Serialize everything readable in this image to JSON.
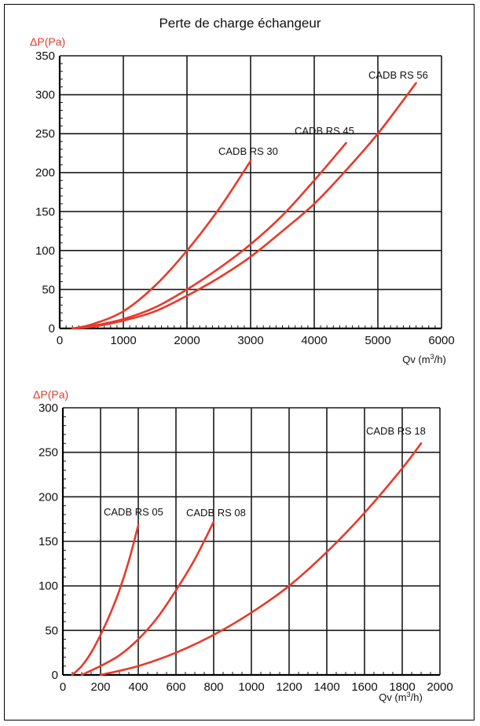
{
  "page_title": "Perte de charge échangeur",
  "colors": {
    "curve": "#e8392b",
    "ylabel": "#e23a2e",
    "grid": "#1a1a1a"
  },
  "chart_data": [
    {
      "type": "line",
      "ylabel": "ΔP(Pa)",
      "xlabel_prefix": "Qv (m",
      "xlabel_sup": "3",
      "xlabel_suffix": "/h)",
      "xlim": [
        0,
        6000
      ],
      "ylim": [
        0,
        350
      ],
      "xticks": [
        0,
        1000,
        2000,
        3000,
        4000,
        5000,
        6000
      ],
      "yticks": [
        0,
        50,
        100,
        150,
        200,
        250,
        300,
        350
      ],
      "grid": true,
      "series": [
        {
          "name": "CADB RS 30",
          "x": [
            200,
            500,
            1000,
            1500,
            2000,
            2500,
            3000
          ],
          "y": [
            0,
            5,
            22,
            55,
            100,
            153,
            215
          ]
        },
        {
          "name": "CADB RS 45",
          "x": [
            200,
            500,
            1000,
            1500,
            2000,
            2500,
            3000,
            3500,
            4000,
            4500
          ],
          "y": [
            0,
            3,
            12,
            27,
            50,
            77,
            108,
            145,
            190,
            238
          ]
        },
        {
          "name": "CADB RS 56",
          "x": [
            200,
            500,
            1000,
            1500,
            2000,
            2500,
            3000,
            3500,
            4000,
            4500,
            5000,
            5600
          ],
          "y": [
            0,
            2,
            10,
            22,
            42,
            65,
            92,
            125,
            160,
            203,
            250,
            315
          ]
        }
      ]
    },
    {
      "type": "line",
      "ylabel": "ΔP(Pa)",
      "xlabel_prefix": "Qv (m",
      "xlabel_sup": "3",
      "xlabel_suffix": "/h)",
      "xlim": [
        0,
        2000
      ],
      "ylim": [
        0,
        300
      ],
      "xticks": [
        0,
        200,
        400,
        600,
        800,
        1000,
        1200,
        1400,
        1600,
        1800,
        2000
      ],
      "yticks": [
        0,
        50,
        100,
        150,
        200,
        250,
        300
      ],
      "grid": true,
      "series": [
        {
          "name": "CADB RS 05",
          "x": [
            50,
            100,
            150,
            200,
            250,
            300,
            350,
            400
          ],
          "y": [
            0,
            10,
            25,
            45,
            68,
            95,
            128,
            168
          ]
        },
        {
          "name": "CADB RS 08",
          "x": [
            100,
            200,
            300,
            400,
            500,
            600,
            700,
            800
          ],
          "y": [
            0,
            10,
            22,
            40,
            64,
            95,
            130,
            172
          ]
        },
        {
          "name": "CADB RS 18",
          "x": [
            200,
            400,
            600,
            800,
            1000,
            1200,
            1400,
            1600,
            1800,
            1900
          ],
          "y": [
            0,
            10,
            25,
            45,
            70,
            100,
            138,
            182,
            232,
            260
          ]
        }
      ]
    }
  ]
}
